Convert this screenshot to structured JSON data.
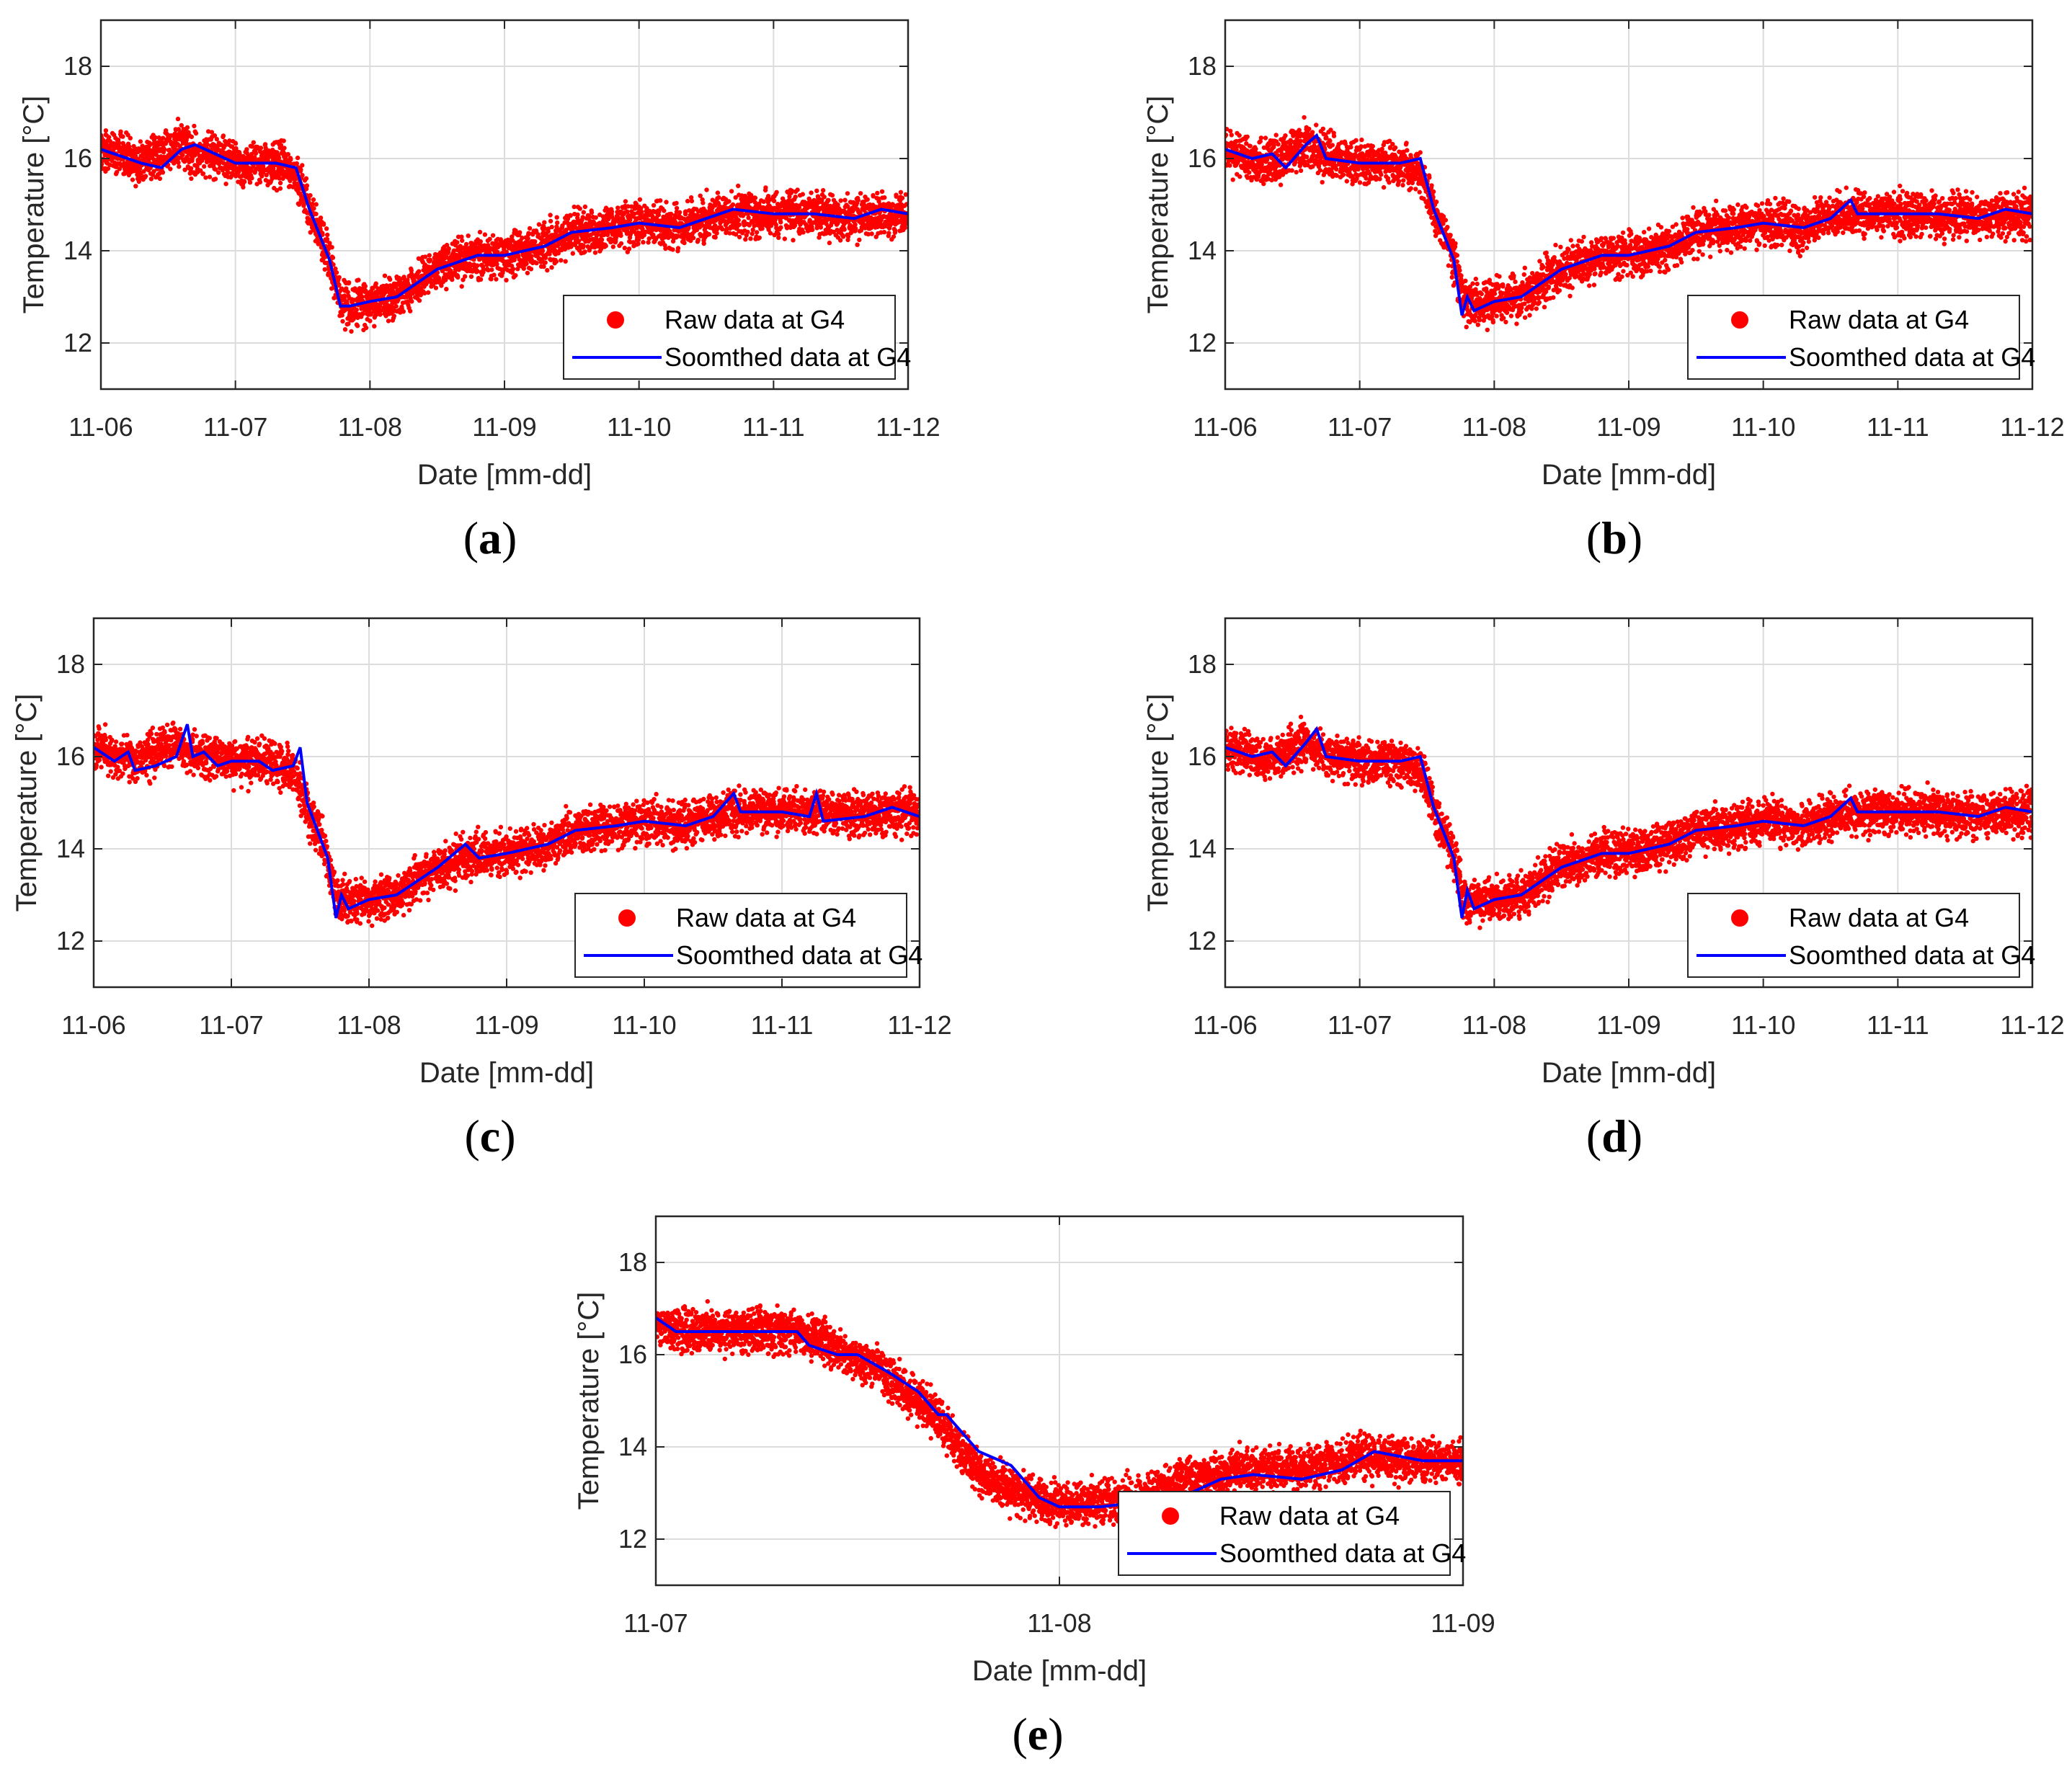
{
  "figure": {
    "captions": [
      "a",
      "b",
      "c",
      "d",
      "e"
    ]
  },
  "colors": {
    "raw": "#ff0000",
    "smooth": "#0000ff",
    "grid": "#dcdcdc",
    "axis": "#262626"
  },
  "chart_data": [
    {
      "id": "a",
      "type": "scatter+line",
      "xlabel": "Date [mm-dd]",
      "ylabel": "Temperature [°C]",
      "xlim": [
        0,
        6
      ],
      "ylim": [
        11,
        19
      ],
      "xticks": [
        0,
        1,
        2,
        3,
        4,
        5,
        6
      ],
      "xtick_labels": [
        "11-06",
        "11-07",
        "11-08",
        "11-09",
        "11-10",
        "11-11",
        "11-12"
      ],
      "yticks": [
        12,
        14,
        16,
        18
      ],
      "ytick_labels": [
        "12",
        "14",
        "16",
        "18"
      ],
      "legend": {
        "position": "lower-right",
        "raw_label": "Raw data at G4",
        "smooth_label": "Soomthed data at G4"
      },
      "series": [
        {
          "name": "Raw data at G4",
          "kind": "scatter",
          "noise": 0.4,
          "x": [
            0,
            0.3,
            0.6,
            0.7,
            1.0,
            1.3,
            1.45,
            1.55,
            1.7,
            1.78,
            1.85,
            2.0,
            2.2,
            2.5,
            2.8,
            3.0,
            3.3,
            3.5,
            3.8,
            4.0,
            4.3,
            4.5,
            4.7,
            5.0,
            5.3,
            5.6,
            5.8,
            6.0
          ],
          "y": [
            16.2,
            15.9,
            16.3,
            16.1,
            15.9,
            15.9,
            15.7,
            14.9,
            13.8,
            12.9,
            12.8,
            12.9,
            13.0,
            13.6,
            13.9,
            13.9,
            14.1,
            14.4,
            14.5,
            14.6,
            14.5,
            14.7,
            14.8,
            14.8,
            14.8,
            14.7,
            14.8,
            14.8
          ]
        },
        {
          "name": "Soomthed data at G4",
          "kind": "line",
          "x": [
            0,
            0.3,
            0.45,
            0.6,
            0.7,
            1.0,
            1.3,
            1.45,
            1.55,
            1.7,
            1.78,
            1.85,
            2.0,
            2.2,
            2.5,
            2.8,
            3.0,
            3.3,
            3.5,
            3.8,
            4.0,
            4.3,
            4.5,
            4.7,
            5.0,
            5.3,
            5.6,
            5.8,
            6.0
          ],
          "y": [
            16.2,
            15.9,
            15.8,
            16.2,
            16.3,
            15.9,
            15.9,
            15.8,
            14.9,
            13.8,
            12.8,
            12.8,
            12.9,
            13.0,
            13.6,
            13.9,
            13.9,
            14.1,
            14.4,
            14.5,
            14.6,
            14.5,
            14.7,
            14.9,
            14.8,
            14.8,
            14.7,
            14.9,
            14.8
          ]
        }
      ]
    },
    {
      "id": "b",
      "type": "scatter+line",
      "xlabel": "Date [mm-dd]",
      "ylabel": "Temperature [°C]",
      "xlim": [
        0,
        6
      ],
      "ylim": [
        11,
        19
      ],
      "xticks": [
        0,
        1,
        2,
        3,
        4,
        5,
        6
      ],
      "xtick_labels": [
        "11-06",
        "11-07",
        "11-08",
        "11-09",
        "11-10",
        "11-11",
        "11-12"
      ],
      "yticks": [
        12,
        14,
        16,
        18
      ],
      "ytick_labels": [
        "12",
        "14",
        "16",
        "18"
      ],
      "legend": {
        "position": "lower-right",
        "raw_label": "Raw data at G4",
        "smooth_label": "Soomthed data at G4"
      },
      "series": [
        {
          "name": "Raw data at G4",
          "kind": "scatter",
          "noise": 0.4,
          "x": [
            0,
            0.3,
            0.6,
            0.7,
            1.0,
            1.3,
            1.45,
            1.55,
            1.7,
            1.78,
            1.85,
            2.0,
            2.2,
            2.5,
            2.8,
            3.0,
            3.3,
            3.5,
            3.8,
            4.0,
            4.3,
            4.5,
            4.7,
            5.0,
            5.3,
            5.6,
            5.8,
            6.0
          ],
          "y": [
            16.2,
            15.9,
            16.3,
            16.1,
            15.9,
            15.9,
            15.7,
            14.9,
            13.8,
            12.9,
            12.8,
            12.9,
            13.0,
            13.6,
            13.9,
            13.9,
            14.1,
            14.4,
            14.5,
            14.6,
            14.5,
            14.7,
            14.8,
            14.8,
            14.8,
            14.7,
            14.8,
            14.8
          ]
        },
        {
          "name": "Soomthed data at G4",
          "kind": "line",
          "x": [
            0,
            0.2,
            0.35,
            0.45,
            0.6,
            0.68,
            0.75,
            1.0,
            1.3,
            1.45,
            1.55,
            1.7,
            1.76,
            1.8,
            1.85,
            2.0,
            2.2,
            2.5,
            2.8,
            3.0,
            3.3,
            3.5,
            3.8,
            4.0,
            4.3,
            4.5,
            4.65,
            4.7,
            5.0,
            5.3,
            5.6,
            5.8,
            6.0
          ],
          "y": [
            16.2,
            16.0,
            16.1,
            15.8,
            16.3,
            16.5,
            16.0,
            15.9,
            15.9,
            16.0,
            14.9,
            13.8,
            12.6,
            13.0,
            12.7,
            12.9,
            13.0,
            13.6,
            13.9,
            13.9,
            14.1,
            14.4,
            14.5,
            14.6,
            14.5,
            14.7,
            15.1,
            14.8,
            14.8,
            14.8,
            14.7,
            14.9,
            14.8
          ]
        }
      ]
    },
    {
      "id": "c",
      "type": "scatter+line",
      "xlabel": "Date [mm-dd]",
      "ylabel": "Temperature [°C]",
      "xlim": [
        0,
        6
      ],
      "ylim": [
        11,
        19
      ],
      "xticks": [
        0,
        1,
        2,
        3,
        4,
        5,
        6
      ],
      "xtick_labels": [
        "11-06",
        "11-07",
        "11-08",
        "11-09",
        "11-10",
        "11-11",
        "11-12"
      ],
      "yticks": [
        12,
        14,
        16,
        18
      ],
      "ytick_labels": [
        "12",
        "14",
        "16",
        "18"
      ],
      "legend": {
        "position": "lower-right",
        "raw_label": "Raw data at G4",
        "smooth_label": "Soomthed data at G4"
      },
      "series": [
        {
          "name": "Raw data at G4",
          "kind": "scatter",
          "noise": 0.4,
          "x": [
            0,
            0.3,
            0.6,
            0.7,
            1.0,
            1.3,
            1.45,
            1.55,
            1.7,
            1.78,
            1.85,
            2.0,
            2.2,
            2.5,
            2.8,
            3.0,
            3.3,
            3.5,
            3.8,
            4.0,
            4.3,
            4.5,
            4.7,
            5.0,
            5.3,
            5.6,
            5.8,
            6.0
          ],
          "y": [
            16.2,
            15.9,
            16.3,
            16.1,
            15.9,
            15.9,
            15.7,
            14.9,
            13.8,
            12.9,
            12.8,
            12.9,
            13.0,
            13.6,
            13.9,
            13.9,
            14.1,
            14.4,
            14.5,
            14.6,
            14.5,
            14.7,
            14.8,
            14.8,
            14.8,
            14.7,
            14.8,
            14.8
          ]
        },
        {
          "name": "Soomthed data at G4",
          "kind": "line",
          "x": [
            0,
            0.15,
            0.25,
            0.3,
            0.45,
            0.6,
            0.68,
            0.72,
            0.8,
            0.9,
            1.0,
            1.2,
            1.3,
            1.45,
            1.5,
            1.55,
            1.7,
            1.76,
            1.8,
            1.85,
            2.0,
            2.2,
            2.5,
            2.7,
            2.8,
            3.0,
            3.3,
            3.5,
            3.8,
            4.0,
            4.3,
            4.5,
            4.65,
            4.7,
            5.0,
            5.2,
            5.25,
            5.3,
            5.6,
            5.8,
            6.0
          ],
          "y": [
            16.2,
            15.9,
            16.1,
            15.7,
            15.8,
            16.0,
            16.7,
            16.0,
            16.1,
            15.8,
            15.9,
            15.9,
            15.7,
            15.8,
            16.2,
            15.0,
            13.8,
            12.5,
            13.0,
            12.7,
            12.9,
            13.0,
            13.6,
            14.1,
            13.8,
            13.9,
            14.1,
            14.4,
            14.5,
            14.6,
            14.5,
            14.7,
            15.2,
            14.8,
            14.8,
            14.7,
            15.2,
            14.6,
            14.7,
            14.9,
            14.7
          ]
        }
      ]
    },
    {
      "id": "d",
      "type": "scatter+line",
      "xlabel": "Date [mm-dd]",
      "ylabel": "Temperature [°C]",
      "xlim": [
        0,
        6
      ],
      "ylim": [
        11,
        19
      ],
      "xticks": [
        0,
        1,
        2,
        3,
        4,
        5,
        6
      ],
      "xtick_labels": [
        "11-06",
        "11-07",
        "11-08",
        "11-09",
        "11-10",
        "11-11",
        "11-12"
      ],
      "yticks": [
        12,
        14,
        16,
        18
      ],
      "ytick_labels": [
        "12",
        "14",
        "16",
        "18"
      ],
      "legend": {
        "position": "lower-right",
        "raw_label": "Raw data at G4",
        "smooth_label": "Soomthed data at G4"
      },
      "series": [
        {
          "name": "Raw data at G4",
          "kind": "scatter",
          "noise": 0.4,
          "x": [
            0,
            0.3,
            0.6,
            0.7,
            1.0,
            1.3,
            1.45,
            1.55,
            1.7,
            1.78,
            1.85,
            2.0,
            2.2,
            2.5,
            2.8,
            3.0,
            3.3,
            3.5,
            3.8,
            4.0,
            4.3,
            4.5,
            4.7,
            5.0,
            5.3,
            5.6,
            5.8,
            6.0
          ],
          "y": [
            16.2,
            15.9,
            16.3,
            16.1,
            15.9,
            15.9,
            15.7,
            14.9,
            13.8,
            12.9,
            12.8,
            12.9,
            13.0,
            13.6,
            13.9,
            13.9,
            14.1,
            14.4,
            14.5,
            14.6,
            14.5,
            14.7,
            14.8,
            14.8,
            14.8,
            14.7,
            14.8,
            14.8
          ]
        },
        {
          "name": "Soomthed data at G4",
          "kind": "line",
          "x": [
            0,
            0.2,
            0.35,
            0.45,
            0.6,
            0.68,
            0.75,
            1.0,
            1.3,
            1.45,
            1.55,
            1.7,
            1.76,
            1.8,
            1.85,
            2.0,
            2.2,
            2.5,
            2.8,
            3.0,
            3.3,
            3.5,
            3.8,
            4.0,
            4.3,
            4.5,
            4.65,
            4.7,
            5.0,
            5.3,
            5.6,
            5.8,
            6.0
          ],
          "y": [
            16.2,
            16.0,
            16.1,
            15.8,
            16.3,
            16.6,
            16.0,
            15.9,
            15.9,
            16.0,
            14.9,
            13.8,
            12.5,
            13.1,
            12.7,
            12.9,
            13.0,
            13.6,
            13.9,
            13.9,
            14.1,
            14.4,
            14.5,
            14.6,
            14.5,
            14.7,
            15.1,
            14.8,
            14.8,
            14.8,
            14.7,
            14.9,
            14.8
          ]
        }
      ]
    },
    {
      "id": "e",
      "type": "scatter+line",
      "xlabel": "Date [mm-dd]",
      "ylabel": "Temperature [°C]",
      "xlim": [
        1,
        3
      ],
      "ylim": [
        11,
        19
      ],
      "xticks": [
        1,
        2,
        3
      ],
      "xtick_labels": [
        "11-07",
        "11-08",
        "11-09"
      ],
      "yticks": [
        12,
        14,
        16,
        18
      ],
      "ytick_labels": [
        "12",
        "14",
        "16",
        "18"
      ],
      "legend": {
        "position": "lower-right",
        "raw_label": "Raw data at G4",
        "smooth_label": "Soomthed data at G4"
      },
      "series": [
        {
          "name": "Raw data at G4",
          "kind": "scatter",
          "noise": 0.4,
          "x": [
            1.0,
            1.1,
            1.2,
            1.35,
            1.45,
            1.55,
            1.65,
            1.72,
            1.8,
            1.9,
            2.0,
            2.1,
            2.2,
            2.3,
            2.45,
            2.6,
            2.75,
            2.9,
            3.0
          ],
          "y": [
            16.6,
            16.5,
            16.5,
            16.5,
            16.1,
            15.7,
            15.0,
            14.4,
            13.4,
            13.0,
            12.7,
            12.8,
            12.9,
            13.3,
            13.5,
            13.5,
            13.8,
            13.7,
            13.7
          ]
        },
        {
          "name": "Soomthed data at G4",
          "kind": "line",
          "x": [
            1.0,
            1.05,
            1.2,
            1.35,
            1.38,
            1.45,
            1.5,
            1.58,
            1.65,
            1.7,
            1.72,
            1.8,
            1.88,
            1.95,
            2.0,
            2.1,
            2.2,
            2.3,
            2.4,
            2.48,
            2.6,
            2.7,
            2.78,
            2.9,
            3.0
          ],
          "y": [
            16.8,
            16.5,
            16.5,
            16.5,
            16.2,
            16.0,
            16.0,
            15.6,
            15.2,
            14.7,
            14.7,
            13.9,
            13.6,
            12.9,
            12.7,
            12.7,
            12.8,
            12.9,
            13.3,
            13.4,
            13.3,
            13.5,
            13.9,
            13.7,
            13.7
          ]
        }
      ]
    }
  ]
}
